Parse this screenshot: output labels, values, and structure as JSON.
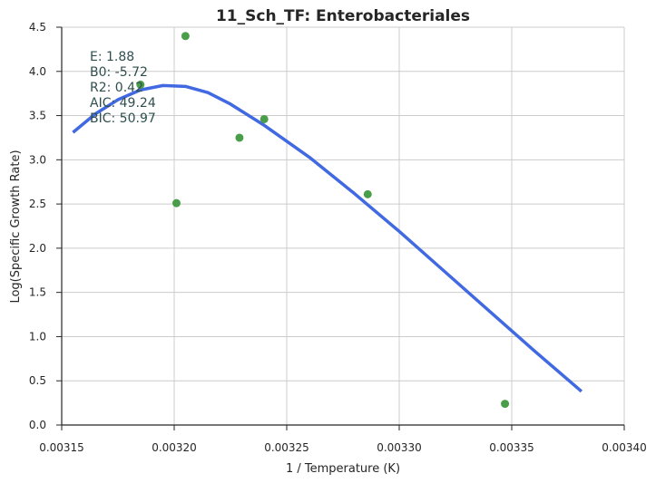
{
  "chart_data": {
    "type": "scatter",
    "title": "11_Sch_TF: Enterobacteriales",
    "xlabel": "1 / Temperature (K)",
    "ylabel": "Log(Specific Growth Rate)",
    "xlim": [
      0.00315,
      0.0034
    ],
    "ylim": [
      0.0,
      4.5
    ],
    "xticks": [
      "0.00315",
      "0.00320",
      "0.00325",
      "0.00330",
      "0.00335",
      "0.00340"
    ],
    "yticks": [
      "0.0",
      "0.5",
      "1.0",
      "1.5",
      "2.0",
      "2.5",
      "3.0",
      "3.5",
      "4.0",
      "4.5"
    ],
    "grid": true,
    "series": [
      {
        "kind": "points",
        "color": "#4a9e4a",
        "x": [
          0.003185,
          0.003201,
          0.003205,
          0.003229,
          0.00324,
          0.003286,
          0.003347
        ],
        "y": [
          3.85,
          2.51,
          4.4,
          3.25,
          3.46,
          2.61,
          0.24
        ]
      },
      {
        "kind": "fit-line",
        "color": "#4169e1",
        "x": [
          0.003155,
          0.003165,
          0.003175,
          0.003185,
          0.003195,
          0.003205,
          0.003215,
          0.003225,
          0.00324,
          0.00326,
          0.00328,
          0.0033,
          0.00332,
          0.00334,
          0.00336,
          0.003381
        ],
        "y": [
          3.31,
          3.52,
          3.68,
          3.79,
          3.84,
          3.83,
          3.76,
          3.63,
          3.39,
          3.03,
          2.62,
          2.19,
          1.74,
          1.29,
          0.84,
          0.38
        ]
      }
    ],
    "annotations": [
      "E:  1.88",
      "B0:  -5.72",
      "R2:  0.42",
      "AIC: 49.24",
      "BIC: 50.97"
    ]
  }
}
